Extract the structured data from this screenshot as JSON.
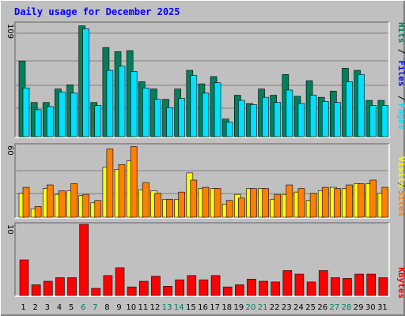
{
  "title": "Daily usage for December 2025",
  "colors": {
    "background": "#c0c0c0",
    "title": "#0000ff",
    "hits": "#00805c",
    "files": "#0000ff",
    "pages": "#00e0ff",
    "visits": "#ffff00",
    "sites": "#ff8000",
    "kbytes": "#ff0000",
    "weekend_label": "#00805c",
    "weekday_label": "#000000"
  },
  "chart_data": [
    {
      "type": "bar",
      "name": "hits-files-pages",
      "categories": [
        "1",
        "2",
        "3",
        "4",
        "5",
        "6",
        "7",
        "8",
        "9",
        "10",
        "11",
        "12",
        "13",
        "14",
        "15",
        "16",
        "17",
        "18",
        "19",
        "20",
        "21",
        "22",
        "23",
        "24",
        "25",
        "26",
        "27",
        "28",
        "29",
        "30",
        "31"
      ],
      "weekend_days": [
        "6",
        "7",
        "13",
        "14",
        "20",
        "21",
        "27",
        "28"
      ],
      "ymax": 109,
      "ymax_label": "109",
      "legend": [
        "Pages",
        "Files",
        "Hits"
      ],
      "series": [
        {
          "name": "Hits",
          "values": [
            73,
            33,
            33,
            46,
            50,
            107,
            33,
            86,
            82,
            83,
            53,
            46,
            36,
            46,
            64,
            51,
            58,
            17,
            40,
            32,
            46,
            40,
            60,
            39,
            54,
            38,
            44,
            66,
            64,
            35,
            35
          ]
        },
        {
          "name": "Pages",
          "values": [
            47,
            26,
            29,
            43,
            42,
            104,
            30,
            64,
            68,
            63,
            47,
            36,
            28,
            37,
            59,
            42,
            52,
            14,
            35,
            31,
            38,
            33,
            45,
            32,
            40,
            34,
            33,
            53,
            60,
            30,
            30
          ]
        }
      ]
    },
    {
      "type": "bar",
      "name": "visits-sites",
      "categories": [
        "1",
        "2",
        "3",
        "4",
        "5",
        "6",
        "7",
        "8",
        "9",
        "10",
        "11",
        "12",
        "13",
        "14",
        "15",
        "16",
        "17",
        "18",
        "19",
        "20",
        "21",
        "22",
        "23",
        "24",
        "25",
        "26",
        "27",
        "28",
        "29",
        "30",
        "31"
      ],
      "ymax": 60,
      "ymax_label": "60",
      "legend": [
        "Sites",
        "Visits"
      ],
      "series": [
        {
          "name": "Visits",
          "values": [
            20,
            7,
            24,
            19,
            22,
            18,
            12,
            42,
            40,
            47,
            23,
            22,
            15,
            15,
            37,
            24,
            24,
            11,
            19,
            24,
            24,
            15,
            19,
            21,
            14,
            22,
            25,
            24,
            28,
            28,
            20
          ]
        },
        {
          "name": "Sites",
          "values": [
            25,
            9,
            27,
            22,
            28,
            19,
            14,
            57,
            44,
            59,
            29,
            20,
            15,
            21,
            31,
            25,
            24,
            14,
            16,
            24,
            24,
            19,
            27,
            24,
            20,
            25,
            24,
            27,
            28,
            31,
            25
          ]
        }
      ]
    },
    {
      "type": "bar",
      "name": "kbytes",
      "categories": [
        "1",
        "2",
        "3",
        "4",
        "5",
        "6",
        "7",
        "8",
        "9",
        "10",
        "11",
        "12",
        "13",
        "14",
        "15",
        "16",
        "17",
        "18",
        "19",
        "20",
        "21",
        "22",
        "23",
        "24",
        "25",
        "26",
        "27",
        "28",
        "29",
        "30",
        "31"
      ],
      "ymax": 10,
      "ymax_label": "10",
      "legend": [
        "KBytes"
      ],
      "series": [
        {
          "name": "KBytes",
          "values": [
            5,
            1.5,
            2,
            2.5,
            2.5,
            10,
            1,
            2.8,
            3.9,
            1.2,
            2,
            2.7,
            1.3,
            2.2,
            2.8,
            2.2,
            2.8,
            1.2,
            1.5,
            2.3,
            2,
            1.9,
            3.5,
            3,
            1.9,
            3.5,
            2.5,
            2.4,
            3,
            3,
            2.5
          ]
        }
      ]
    }
  ]
}
